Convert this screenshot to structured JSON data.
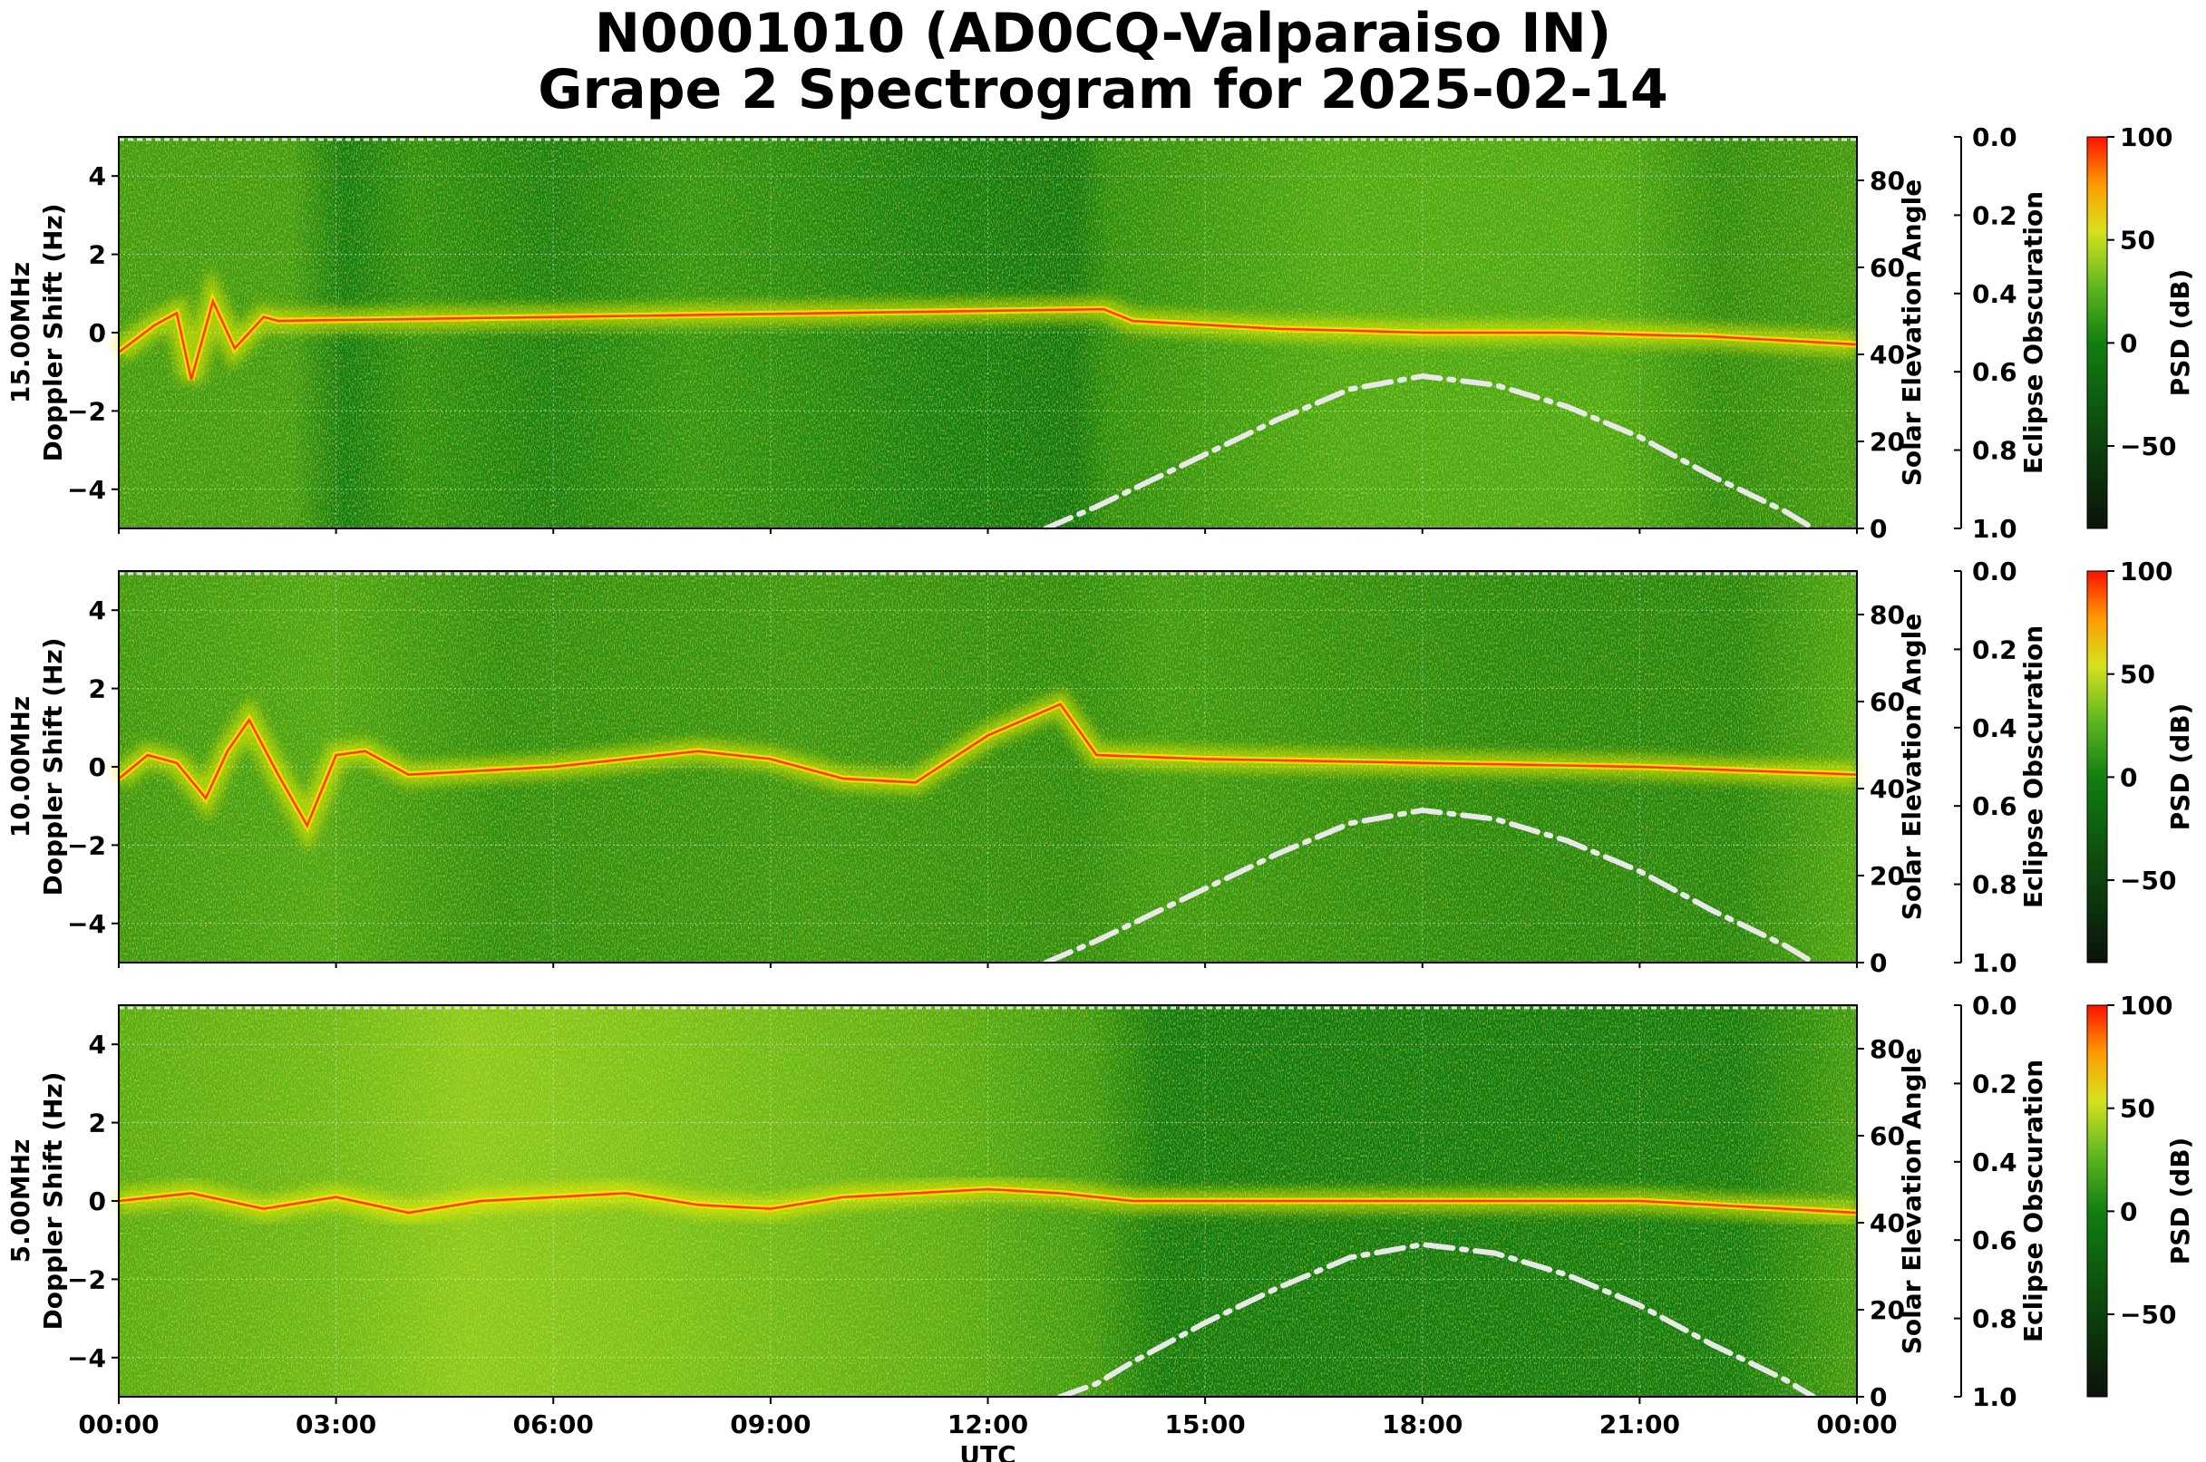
{
  "title_line1": "N0001010 (AD0CQ-Valparaiso IN)",
  "title_line2": "Grape 2 Spectrogram for 2025-02-14",
  "chart_data": [
    {
      "type": "heatmap",
      "ylabel": "15.00MHz\nDoppler Shift (Hz)",
      "xlabel": "",
      "ylim": [
        -5,
        5
      ],
      "y_ticks": [
        -4,
        -2,
        0,
        2,
        4
      ],
      "y2label": "Solar Elevation Angle",
      "y2lim": [
        0,
        90
      ],
      "y2_ticks": [
        0,
        20,
        40,
        60,
        80
      ],
      "y3label": "Eclipse Obscuration",
      "y3lim": [
        1.0,
        0.0
      ],
      "y3_ticks": [
        "0.0",
        "0.2",
        "0.4",
        "0.6",
        "0.8",
        "1.0"
      ],
      "colorbar_label": "PSD (dB)",
      "colorbar_ticks": [
        100,
        50,
        0,
        -50
      ],
      "colorbar_range": [
        -90,
        100
      ],
      "solar_elevation": {
        "x_hours": [
          12.8,
          13.5,
          14,
          15,
          16,
          17,
          18,
          19,
          20,
          21,
          22,
          23,
          23.4
        ],
        "y_deg": [
          0,
          5,
          9,
          17,
          25,
          32,
          35,
          33,
          28,
          21,
          12,
          4,
          0
        ]
      },
      "doppler_trace": {
        "x_hours": [
          0,
          0.5,
          0.8,
          1.0,
          1.3,
          1.6,
          2.0,
          2.2,
          13.6,
          14,
          15,
          16,
          17,
          18,
          19,
          20,
          21,
          22,
          23,
          24
        ],
        "y_hz": [
          -0.5,
          0.2,
          0.5,
          -1.2,
          0.8,
          -0.4,
          0.4,
          0.3,
          0.6,
          0.3,
          0.2,
          0.1,
          0.05,
          0.0,
          0.0,
          0.0,
          -0.05,
          -0.1,
          -0.2,
          -0.3
        ]
      }
    },
    {
      "type": "heatmap",
      "ylabel": "10.00MHz\nDoppler Shift (Hz)",
      "xlabel": "",
      "ylim": [
        -5,
        5
      ],
      "y_ticks": [
        -4,
        -2,
        0,
        2,
        4
      ],
      "y2label": "Solar Elevation Angle",
      "y2lim": [
        0,
        90
      ],
      "y2_ticks": [
        0,
        20,
        40,
        60,
        80
      ],
      "y3label": "Eclipse Obscuration",
      "y3lim": [
        1.0,
        0.0
      ],
      "y3_ticks": [
        "0.0",
        "0.2",
        "0.4",
        "0.6",
        "0.8",
        "1.0"
      ],
      "colorbar_label": "PSD (dB)",
      "colorbar_ticks": [
        100,
        50,
        0,
        -50
      ],
      "colorbar_range": [
        -90,
        100
      ],
      "solar_elevation": {
        "x_hours": [
          12.8,
          13.5,
          14,
          15,
          16,
          17,
          18,
          19,
          20,
          21,
          22,
          23,
          23.4
        ],
        "y_deg": [
          0,
          5,
          9,
          17,
          25,
          32,
          35,
          33,
          28,
          21,
          12,
          4,
          0
        ]
      },
      "doppler_trace": {
        "x_hours": [
          0,
          0.4,
          0.8,
          1.2,
          1.5,
          1.8,
          2.2,
          2.6,
          3.0,
          3.4,
          4,
          6,
          8,
          9,
          10,
          11,
          12,
          13,
          13.5,
          15,
          18,
          21,
          24
        ],
        "y_hz": [
          -0.3,
          0.3,
          0.1,
          -0.8,
          0.4,
          1.2,
          -0.2,
          -1.5,
          0.3,
          0.4,
          -0.2,
          0.0,
          0.4,
          0.2,
          -0.3,
          -0.4,
          0.8,
          1.6,
          0.3,
          0.2,
          0.1,
          0.0,
          -0.2
        ]
      }
    },
    {
      "type": "heatmap",
      "ylabel": "5.00MHz\nDoppler Shift (Hz)",
      "xlabel": "UTC",
      "x_ticks": [
        "00:00",
        "03:00",
        "06:00",
        "09:00",
        "12:00",
        "15:00",
        "18:00",
        "21:00",
        "00:00"
      ],
      "ylim": [
        -5,
        5
      ],
      "y_ticks": [
        -4,
        -2,
        0,
        2,
        4
      ],
      "y2label": "Solar Elevation Angle",
      "y2lim": [
        0,
        90
      ],
      "y2_ticks": [
        0,
        20,
        40,
        60,
        80
      ],
      "y3label": "Eclipse Obscuration",
      "y3lim": [
        1.0,
        0.0
      ],
      "y3_ticks": [
        "0.0",
        "0.2",
        "0.4",
        "0.6",
        "0.8",
        "1.0"
      ],
      "colorbar_label": "PSD (dB)",
      "colorbar_ticks": [
        100,
        50,
        0,
        -50
      ],
      "colorbar_range": [
        -90,
        100
      ],
      "solar_elevation": {
        "x_hours": [
          13.0,
          13.5,
          14,
          15,
          16,
          17,
          18,
          19,
          20,
          21,
          22,
          23,
          23.4
        ],
        "y_deg": [
          0,
          3,
          8,
          17,
          25,
          32,
          35,
          33,
          28,
          21,
          12,
          4,
          0
        ]
      },
      "doppler_trace": {
        "x_hours": [
          0,
          1,
          2,
          3,
          4,
          5,
          6,
          7,
          8,
          9,
          10,
          11,
          12,
          13,
          14,
          15,
          18,
          21,
          24
        ],
        "y_hz": [
          0.0,
          0.2,
          -0.2,
          0.1,
          -0.3,
          0.0,
          0.1,
          0.2,
          -0.1,
          -0.2,
          0.1,
          0.2,
          0.3,
          0.2,
          0.0,
          0.0,
          0.0,
          0.0,
          -0.3
        ]
      }
    }
  ]
}
